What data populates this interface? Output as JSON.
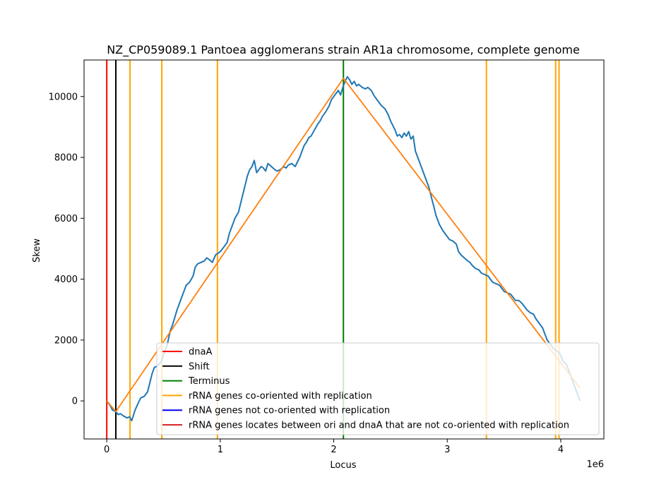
{
  "chart_data": {
    "type": "line",
    "title": "NZ_CP059089.1 Pantoea agglomerans strain AR1a chromosome, complete genome",
    "xlabel": "Locus",
    "ylabel": "Skew",
    "x_scale_label": "1e6",
    "xlim": [
      -0.2,
      4.38
    ],
    "ylim": [
      -1250,
      11200
    ],
    "x_ticks": [
      0,
      1,
      2,
      3,
      4
    ],
    "x_tick_labels": [
      "0",
      "1",
      "2",
      "3",
      "4"
    ],
    "y_ticks": [
      0,
      2000,
      4000,
      6000,
      8000,
      10000
    ],
    "y_tick_labels": [
      "0",
      "2000",
      "4000",
      "6000",
      "8000",
      "10000"
    ],
    "grid": false,
    "legend_placement": "lower-right",
    "colors": {
      "dnaA": "#ff0000",
      "shift": "#000000",
      "terminus": "#008000",
      "rrna_co": "#ffa500",
      "rrna_not_co": "#0000ff",
      "rrna_between": "#d62728",
      "skew": "#1f77b4",
      "fit": "#ff7f0e"
    },
    "vertical_lines": [
      {
        "series": "dnaA",
        "x": 0.0
      },
      {
        "series": "shift",
        "x": 0.08
      },
      {
        "series": "terminus",
        "x": 2.085
      },
      {
        "series": "rrna_co",
        "x": 0.205
      },
      {
        "series": "rrna_co",
        "x": 0.485
      },
      {
        "series": "rrna_co",
        "x": 0.975
      },
      {
        "series": "rrna_co",
        "x": 3.345
      },
      {
        "series": "rrna_co",
        "x": 3.955
      },
      {
        "series": "rrna_co",
        "x": 3.985
      }
    ],
    "series": [
      {
        "key": "skew",
        "x": [
          0.0,
          0.03,
          0.05,
          0.08,
          0.1,
          0.12,
          0.15,
          0.18,
          0.2,
          0.22,
          0.25,
          0.28,
          0.3,
          0.33,
          0.36,
          0.38,
          0.4,
          0.42,
          0.45,
          0.48,
          0.5,
          0.53,
          0.56,
          0.58,
          0.62,
          0.65,
          0.68,
          0.7,
          0.73,
          0.76,
          0.78,
          0.8,
          0.83,
          0.86,
          0.88,
          0.9,
          0.93,
          0.96,
          0.98,
          1.0,
          1.03,
          1.06,
          1.08,
          1.1,
          1.13,
          1.16,
          1.18,
          1.2,
          1.22,
          1.24,
          1.26,
          1.28,
          1.3,
          1.32,
          1.34,
          1.36,
          1.38,
          1.4,
          1.42,
          1.45,
          1.48,
          1.5,
          1.53,
          1.56,
          1.58,
          1.6,
          1.63,
          1.66,
          1.68,
          1.7,
          1.72,
          1.74,
          1.76,
          1.78,
          1.8,
          1.83,
          1.86,
          1.88,
          1.9,
          1.93,
          1.96,
          1.98,
          2.0,
          2.02,
          2.04,
          2.06,
          2.08,
          2.1,
          2.12,
          2.14,
          2.16,
          2.18,
          2.2,
          2.22,
          2.25,
          2.28,
          2.3,
          2.33,
          2.36,
          2.38,
          2.4,
          2.42,
          2.45,
          2.48,
          2.5,
          2.52,
          2.54,
          2.56,
          2.58,
          2.6,
          2.62,
          2.64,
          2.66,
          2.68,
          2.7,
          2.72,
          2.74,
          2.76,
          2.78,
          2.8,
          2.82,
          2.84,
          2.86,
          2.88,
          2.9,
          2.93,
          2.96,
          2.98,
          3.0,
          3.02,
          3.05,
          3.08,
          3.1,
          3.12,
          3.15,
          3.18,
          3.2,
          3.22,
          3.25,
          3.28,
          3.3,
          3.33,
          3.36,
          3.38,
          3.4,
          3.43,
          3.46,
          3.48,
          3.5,
          3.53,
          3.56,
          3.58,
          3.6,
          3.63,
          3.66,
          3.68,
          3.7,
          3.73,
          3.76,
          3.78,
          3.8,
          3.82,
          3.84,
          3.86,
          3.88,
          3.9,
          3.92,
          3.94,
          3.96,
          3.98,
          4.0,
          4.02,
          4.05,
          4.08,
          4.1,
          4.12,
          4.15,
          4.17
        ],
        "values": [
          0,
          -150,
          -300,
          -350,
          -450,
          -420,
          -500,
          -560,
          -520,
          -650,
          -300,
          -50,
          100,
          150,
          300,
          600,
          900,
          1100,
          1150,
          1300,
          1500,
          1800,
          2300,
          2500,
          3000,
          3300,
          3600,
          3800,
          3900,
          4100,
          4400,
          4500,
          4550,
          4600,
          4700,
          4650,
          4550,
          4800,
          4850,
          4900,
          5050,
          5200,
          5500,
          5700,
          6000,
          6200,
          6500,
          6800,
          7100,
          7400,
          7600,
          7700,
          7900,
          7500,
          7600,
          7700,
          7650,
          7550,
          7800,
          7700,
          7600,
          7550,
          7600,
          7700,
          7650,
          7750,
          7800,
          7700,
          7850,
          8000,
          8200,
          8400,
          8500,
          8650,
          8700,
          8900,
          9100,
          9200,
          9350,
          9500,
          9700,
          9900,
          10000,
          10100,
          10200,
          10050,
          10300,
          10500,
          10650,
          10550,
          10400,
          10500,
          10350,
          10400,
          10300,
          10250,
          10300,
          10200,
          10000,
          9900,
          9800,
          9700,
          9600,
          9400,
          9200,
          9050,
          8900,
          8700,
          8750,
          8650,
          8800,
          8700,
          8850,
          8600,
          8700,
          8200,
          8000,
          7800,
          7600,
          7400,
          7200,
          7000,
          6700,
          6400,
          6100,
          5800,
          5600,
          5500,
          5400,
          5300,
          5250,
          5150,
          4900,
          4800,
          4700,
          4600,
          4550,
          4450,
          4350,
          4300,
          4200,
          4150,
          4100,
          4000,
          3900,
          3850,
          3800,
          3700,
          3600,
          3550,
          3500,
          3400,
          3300,
          3300,
          3200,
          3100,
          3000,
          2900,
          2850,
          2700,
          2600,
          2500,
          2400,
          2200,
          2000,
          1900,
          1800,
          1700,
          1650,
          1600,
          1500,
          1300,
          1200,
          900,
          700,
          500,
          200,
          0
        ]
      },
      {
        "key": "fit",
        "x": [
          0.0,
          0.08,
          2.085,
          4.17
        ],
        "values": [
          0,
          -350,
          10600,
          420
        ]
      }
    ],
    "legend": [
      {
        "series": "dnaA",
        "label": "dnaA"
      },
      {
        "series": "shift",
        "label": "Shift"
      },
      {
        "series": "terminus",
        "label": "Terminus"
      },
      {
        "series": "rrna_co",
        "label": "rRNA genes co-oriented with replication"
      },
      {
        "series": "rrna_not_co",
        "label": "rRNA genes not co-oriented with replication"
      },
      {
        "series": "rrna_between",
        "label": "rRNA genes locates between ori and dnaA that are not co-oriented with replication"
      }
    ]
  }
}
